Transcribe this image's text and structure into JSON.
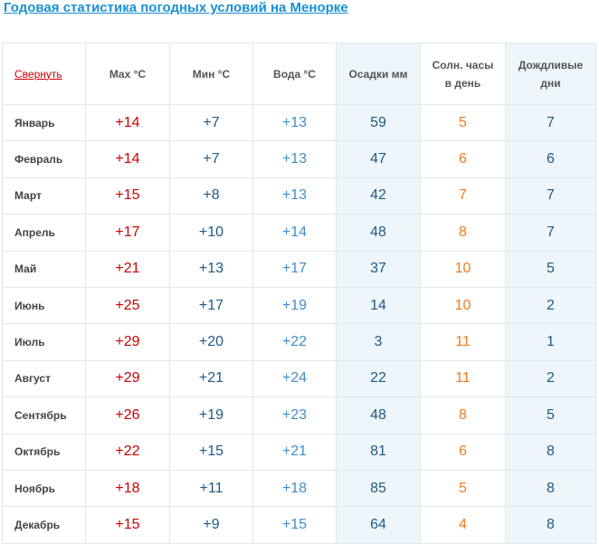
{
  "title": "Годовая статистика погодных условий на Менорке",
  "table": {
    "toggle_label": "Свернуть",
    "headers": {
      "max": "Max °C",
      "min": "Мин °C",
      "water": "Вода °C",
      "rain": "Осадки мм",
      "sun_line1": "Солн. часы",
      "sun_line2": "в день",
      "days_line1": "Дождливые",
      "days_line2": "дни"
    },
    "rows": [
      {
        "month": "Январь",
        "max": "+14",
        "min": "+7",
        "water": "+13",
        "rain": "59",
        "sun": "5",
        "days": "7"
      },
      {
        "month": "Февраль",
        "max": "+14",
        "min": "+7",
        "water": "+13",
        "rain": "47",
        "sun": "6",
        "days": "6"
      },
      {
        "month": "Март",
        "max": "+15",
        "min": "+8",
        "water": "+13",
        "rain": "42",
        "sun": "7",
        "days": "7"
      },
      {
        "month": "Апрель",
        "max": "+17",
        "min": "+10",
        "water": "+14",
        "rain": "48",
        "sun": "8",
        "days": "7"
      },
      {
        "month": "Май",
        "max": "+21",
        "min": "+13",
        "water": "+17",
        "rain": "37",
        "sun": "10",
        "days": "5"
      },
      {
        "month": "Июнь",
        "max": "+25",
        "min": "+17",
        "water": "+19",
        "rain": "14",
        "sun": "10",
        "days": "2"
      },
      {
        "month": "Июль",
        "max": "+29",
        "min": "+20",
        "water": "+22",
        "rain": "3",
        "sun": "11",
        "days": "1"
      },
      {
        "month": "Август",
        "max": "+29",
        "min": "+21",
        "water": "+24",
        "rain": "22",
        "sun": "11",
        "days": "2"
      },
      {
        "month": "Сентябрь",
        "max": "+26",
        "min": "+19",
        "water": "+23",
        "rain": "48",
        "sun": "8",
        "days": "5"
      },
      {
        "month": "Октябрь",
        "max": "+22",
        "min": "+15",
        "water": "+21",
        "rain": "81",
        "sun": "6",
        "days": "8"
      },
      {
        "month": "Ноябрь",
        "max": "+18",
        "min": "+11",
        "water": "+18",
        "rain": "85",
        "sun": "5",
        "days": "8"
      },
      {
        "month": "Декабрь",
        "max": "+15",
        "min": "+9",
        "water": "+15",
        "rain": "64",
        "sun": "4",
        "days": "8"
      }
    ]
  },
  "colors": {
    "title": "#1a8fd6",
    "toggle": "#cc0000",
    "max_temp": "#cc0000",
    "min_temp": "#1f5a86",
    "water_temp": "#3f8fc8",
    "sun_hours": "#f07b1e",
    "shaded_column": "#eef5fb"
  }
}
